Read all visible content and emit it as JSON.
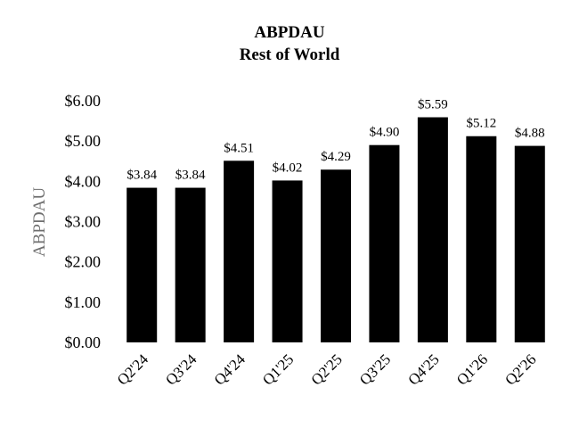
{
  "chart_data": {
    "type": "bar",
    "title": "ABPDAU",
    "subtitle": "Rest of World",
    "ylabel": "ABPDAU",
    "xlabel": "",
    "categories": [
      "Q2'24",
      "Q3'24",
      "Q4'24",
      "Q1'25",
      "Q2'25",
      "Q3'25",
      "Q4'25",
      "Q1'26",
      "Q2'26"
    ],
    "values": [
      3.84,
      3.84,
      4.51,
      4.02,
      4.29,
      4.9,
      5.59,
      5.12,
      4.88
    ],
    "data_labels": [
      "$3.84",
      "$3.84",
      "$4.51",
      "$4.02",
      "$4.29",
      "$4.90",
      "$5.59",
      "$5.12",
      "$4.88"
    ],
    "ylim": [
      0,
      6
    ],
    "yticks": [
      0,
      1,
      2,
      3,
      4,
      5,
      6
    ],
    "ytick_labels": [
      "$0.00",
      "$1.00",
      "$2.00",
      "$3.00",
      "$4.00",
      "$5.00",
      "$6.00"
    ],
    "grid": false,
    "legend": "none",
    "bar_color": "#000000"
  }
}
